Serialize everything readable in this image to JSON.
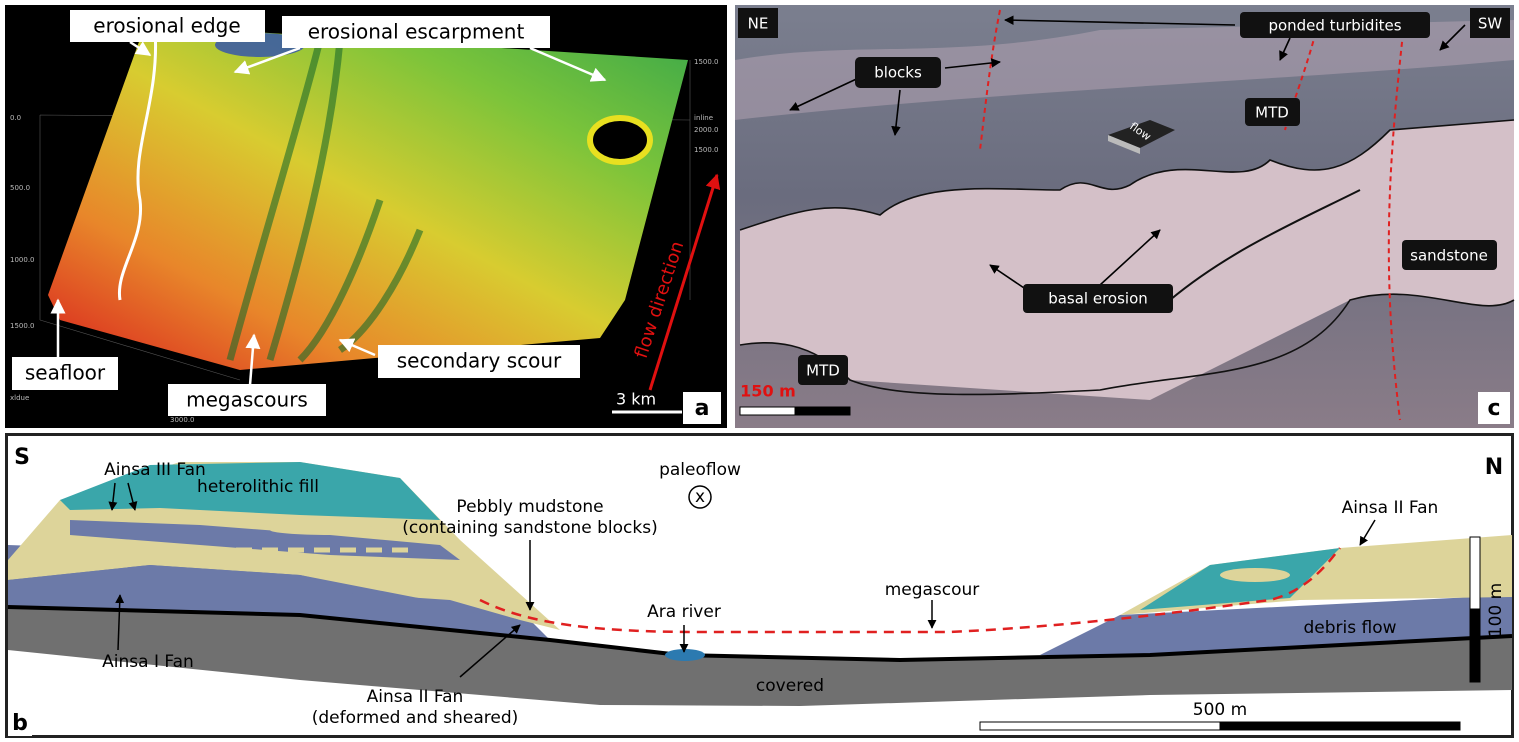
{
  "panel_a": {
    "letter": "a",
    "labels": {
      "erosional_edge": "erosional edge",
      "erosional_escarpment": "erosional escarpment",
      "seafloor": "seafloor",
      "megascours": "megascours",
      "secondary_scour": "secondary scour",
      "flow_direction": "flow direction"
    },
    "scale": "3 km",
    "axis_labels": [
      "0.0",
      "500.0",
      "1000.0",
      "1500.0",
      "1500.0",
      "2000.0",
      "1500.0",
      "inline",
      "3000.0",
      "xldue"
    ]
  },
  "panel_c": {
    "letter": "c",
    "labels": {
      "ne": "NE",
      "sw": "SW",
      "ponded_turbidites": "ponded turbidites",
      "blocks": "blocks",
      "mtd_upper": "MTD",
      "mtd_lower": "MTD",
      "flow": "flow",
      "sandstone": "sandstone",
      "basal_erosion": "basal erosion"
    },
    "scale": "150 m"
  },
  "panel_b": {
    "letter": "b",
    "labels": {
      "s": "S",
      "n": "N",
      "ainsa_iii": "Ainsa III Fan",
      "heterolithic": "heterolithic fill",
      "pebbly": "Pebbly mudstone",
      "pebbly_note": "(containing sandstone blocks)",
      "paleoflow": "paleoflow",
      "paleoflow_symbol": "x",
      "megascour": "megascour",
      "ainsa_ii_right": "Ainsa II Fan",
      "ara": "Ara river",
      "debris": "debris flow",
      "ainsa_i": "Ainsa I Fan",
      "ainsa_ii_left": "Ainsa II Fan",
      "ainsa_ii_note": "(deformed and sheared)",
      "covered": "covered"
    },
    "scale_h": "500 m",
    "scale_v": "100 m"
  }
}
